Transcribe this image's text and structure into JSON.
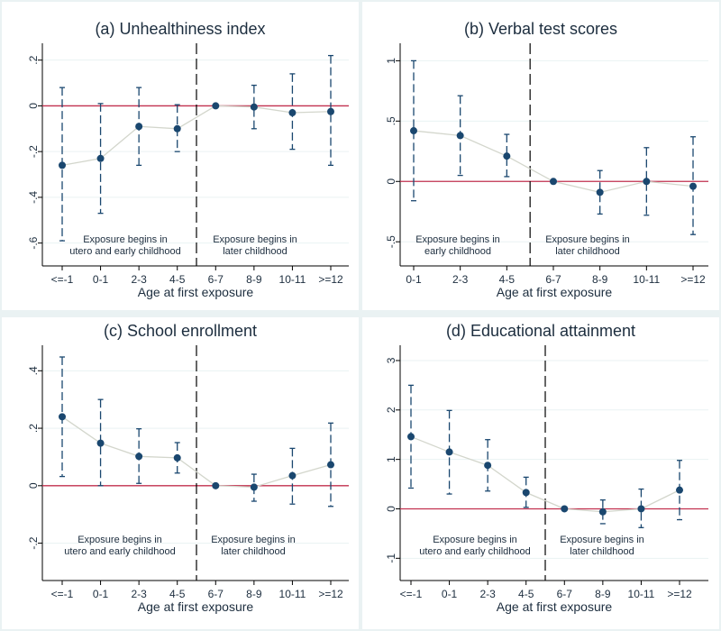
{
  "colors": {
    "background": "#eaf2f3",
    "panel": "#ffffff",
    "grid": "#eaf2f3",
    "axis": "#000000",
    "zero_line": "#c2314f",
    "connector": "#d3d6cc",
    "point": "#1a476f",
    "ci": "#1a476f",
    "text": "#1c2d3e"
  },
  "chart_data": [
    {
      "type": "scatter",
      "title": "(a) Unhealthiness index",
      "xlabel": "Age at first exposure",
      "ylabel": "",
      "categories": [
        "<=-1",
        "0-1",
        "2-3",
        "4-5",
        "6-7",
        "8-9",
        "10-11",
        ">=12"
      ],
      "estimates": [
        -0.26,
        -0.23,
        -0.09,
        -0.1,
        0.0,
        -0.005,
        -0.03,
        -0.025
      ],
      "ci_low": [
        -0.59,
        -0.47,
        -0.26,
        -0.2,
        0.0,
        -0.1,
        -0.19,
        -0.26
      ],
      "ci_high": [
        0.08,
        0.01,
        0.08,
        0.005,
        0.0,
        0.09,
        0.14,
        0.22
      ],
      "ylim": [
        -0.7,
        0.25
      ],
      "yticks": [
        ".2",
        "0",
        "-.2",
        "-.4",
        "-.6"
      ],
      "ytick_values": [
        0.2,
        0,
        -0.2,
        -0.4,
        -0.6
      ],
      "reference_line_y": 0,
      "divider_after_category": "4-5",
      "annotations": [
        {
          "lines": [
            "Exposure begins in",
            "utero and early childhood"
          ]
        },
        {
          "lines": [
            "Exposure begins in",
            "later childhood"
          ]
        }
      ],
      "grid": true,
      "legend": "none"
    },
    {
      "type": "scatter",
      "title": "(b) Verbal test scores",
      "xlabel": "Age at first exposure",
      "ylabel": "",
      "categories": [
        "0-1",
        "2-3",
        "4-5",
        "6-7",
        "8-9",
        "10-11",
        ">=12"
      ],
      "estimates": [
        0.42,
        0.38,
        0.21,
        0.0,
        -0.09,
        0.0,
        -0.04
      ],
      "ci_low": [
        -0.16,
        0.05,
        0.04,
        0.0,
        -0.27,
        -0.28,
        -0.44
      ],
      "ci_high": [
        1.0,
        0.71,
        0.39,
        0.0,
        0.09,
        0.28,
        0.37
      ],
      "ylim": [
        -0.7,
        1.1
      ],
      "yticks": [
        "1",
        ".5",
        "0",
        "-.5"
      ],
      "ytick_values": [
        1,
        0.5,
        0,
        -0.5
      ],
      "reference_line_y": 0,
      "divider_after_category": "4-5",
      "annotations": [
        {
          "lines": [
            "Exposure begins in",
            "early childhood"
          ]
        },
        {
          "lines": [
            "Exposure begins in",
            "later childhood"
          ]
        }
      ],
      "grid": true,
      "legend": "none"
    },
    {
      "type": "scatter",
      "title": "(c) School enrollment",
      "xlabel": "Age at first exposure",
      "ylabel": "",
      "categories": [
        "<=-1",
        "0-1",
        "2-3",
        "4-5",
        "6-7",
        "8-9",
        "10-11",
        ">=12"
      ],
      "estimates": [
        0.24,
        0.148,
        0.102,
        0.097,
        0.0,
        -0.005,
        0.035,
        0.073
      ],
      "ci_low": [
        0.032,
        0.0,
        0.008,
        0.044,
        0.0,
        -0.054,
        -0.064,
        -0.072
      ],
      "ci_high": [
        0.448,
        0.3,
        0.198,
        0.15,
        0.0,
        0.04,
        0.13,
        0.218
      ],
      "ylim": [
        -0.33,
        0.47
      ],
      "yticks": [
        ".4",
        ".2",
        "0",
        "-.2"
      ],
      "ytick_values": [
        0.4,
        0.2,
        0,
        -0.2
      ],
      "reference_line_y": 0,
      "divider_after_category": "4-5",
      "annotations": [
        {
          "lines": [
            "Exposure begins in",
            "utero and early childhood"
          ]
        },
        {
          "lines": [
            "Exposure begins in",
            "later childhood"
          ]
        }
      ],
      "grid": true,
      "legend": "none"
    },
    {
      "type": "scatter",
      "title": "(d) Educational attainment",
      "xlabel": "Age at first exposure",
      "ylabel": "",
      "categories": [
        "<=-1",
        "0-1",
        "2-3",
        "4-5",
        "6-7",
        "8-9",
        "10-11",
        ">=12"
      ],
      "estimates": [
        1.46,
        1.15,
        0.88,
        0.33,
        0.0,
        -0.06,
        0.0,
        0.38
      ],
      "ci_low": [
        0.42,
        0.3,
        0.36,
        0.03,
        0.0,
        -0.3,
        -0.38,
        -0.22
      ],
      "ci_high": [
        2.5,
        1.99,
        1.4,
        0.64,
        0.0,
        0.18,
        0.4,
        0.98
      ],
      "ylim": [
        -1.45,
        3.2
      ],
      "yticks": [
        "3",
        "2",
        "1",
        "0",
        "-1"
      ],
      "ytick_values": [
        3,
        2,
        1,
        0,
        -1
      ],
      "reference_line_y": 0,
      "divider_after_category": "4-5",
      "annotations": [
        {
          "lines": [
            "Exposure begins in",
            "utero and early childhood"
          ]
        },
        {
          "lines": [
            "Exposure begins in",
            "later childhood"
          ]
        }
      ],
      "grid": true,
      "legend": "none"
    }
  ]
}
